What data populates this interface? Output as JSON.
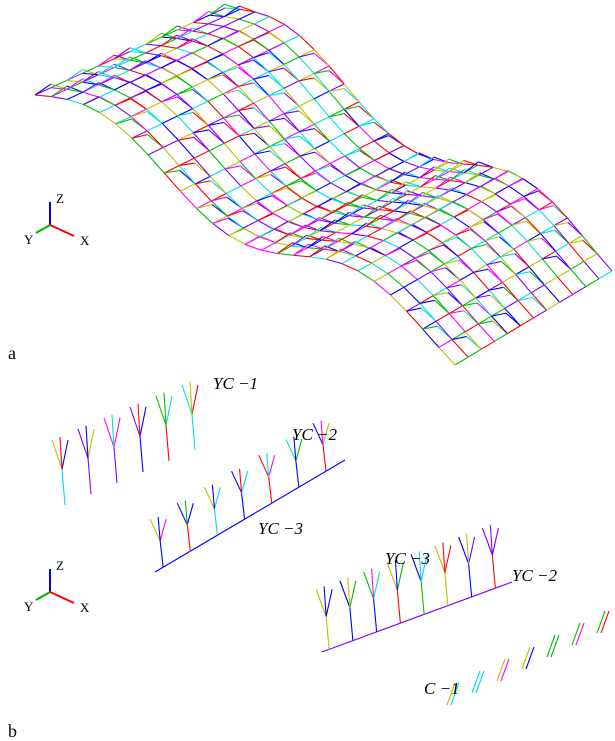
{
  "panels": [
    {
      "label": "a",
      "axes": {
        "z": "Z",
        "y": "Y",
        "x": "X"
      }
    },
    {
      "label": "b",
      "axes": {
        "z": "Z",
        "y": "Y",
        "x": "X"
      },
      "annotations": [
        "YC −1",
        "YC −2",
        "YC −3",
        "YC −3",
        "YC −2",
        "C −1"
      ]
    }
  ]
}
